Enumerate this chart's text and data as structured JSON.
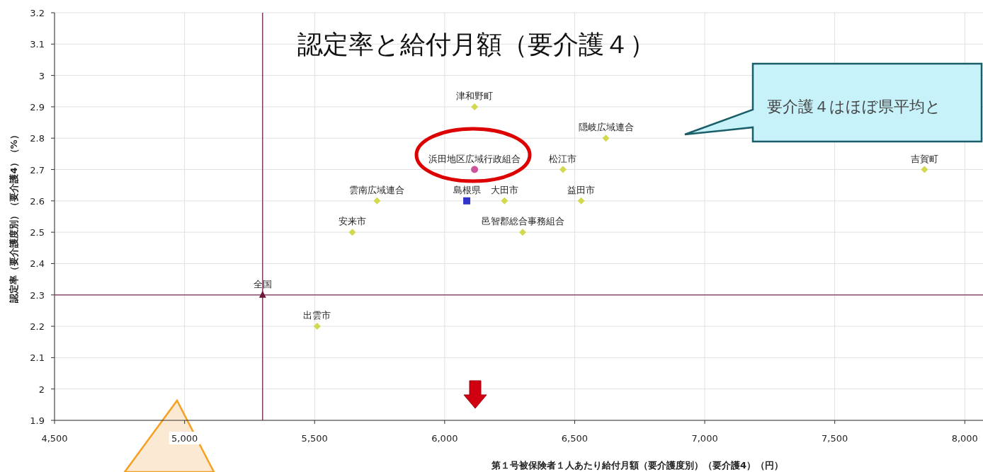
{
  "chart_data": {
    "type": "scatter",
    "title": "認定率と給付月額（要介護４）",
    "xlabel": "第１号被保険者１人あたり給付月額（要介護度別）（要介護4）（円）",
    "ylabel": "認定率（要介護度別）（要介護4）（%）",
    "xlim": [
      4500,
      8070
    ],
    "ylim": [
      1.9,
      3.2
    ],
    "xticks": [
      {
        "value": 4500,
        "label": "4,500"
      },
      {
        "value": 5000,
        "label": "5,000"
      },
      {
        "value": 5500,
        "label": "5,500"
      },
      {
        "value": 6000,
        "label": "6,000"
      },
      {
        "value": 6500,
        "label": "6,500"
      },
      {
        "value": 7000,
        "label": "7,000"
      },
      {
        "value": 7500,
        "label": "7,500"
      },
      {
        "value": 8000,
        "label": "8,000"
      }
    ],
    "yticks": [
      1.9,
      2,
      2.1,
      2.2,
      2.3,
      2.4,
      2.5,
      2.6,
      2.7,
      2.8,
      2.9,
      3,
      3.1,
      3.2
    ],
    "grid": true,
    "ref_lines": [
      {
        "axis": "x",
        "value": 5300,
        "color": "#6e1f4a"
      },
      {
        "axis": "y",
        "value": 2.3,
        "color": "#8c4a6e"
      }
    ],
    "series": [
      {
        "name": "全国",
        "color": "#6b1a3a",
        "marker": "triangle",
        "x": [
          5300
        ],
        "values": [
          2.3
        ]
      },
      {
        "name": "出雲市",
        "color": "#d2d94e",
        "marker": "diamond",
        "x": [
          5510
        ],
        "values": [
          2.2
        ]
      },
      {
        "name": "安来市",
        "color": "#d2d94e",
        "marker": "diamond",
        "x": [
          5645
        ],
        "values": [
          2.5
        ]
      },
      {
        "name": "雲南広域連合",
        "color": "#d2d94e",
        "marker": "diamond",
        "x": [
          5740
        ],
        "values": [
          2.6
        ]
      },
      {
        "name": "島根県",
        "color": "#3333cc",
        "marker": "square",
        "x": [
          6085
        ],
        "values": [
          2.6
        ]
      },
      {
        "name": "浜田地区広域行政組合",
        "color": "#cc5599",
        "marker": "circle",
        "x": [
          6115
        ],
        "values": [
          2.7
        ]
      },
      {
        "name": "津和野町",
        "color": "#d2d94e",
        "marker": "diamond",
        "x": [
          6115
        ],
        "values": [
          2.9
        ]
      },
      {
        "name": "大田市",
        "color": "#d2d94e",
        "marker": "diamond",
        "x": [
          6230
        ],
        "values": [
          2.6
        ]
      },
      {
        "name": "邑智郡総合事務組合",
        "color": "#d2d94e",
        "marker": "diamond",
        "x": [
          6300
        ],
        "values": [
          2.5
        ]
      },
      {
        "name": "松江市",
        "color": "#d2d94e",
        "marker": "diamond",
        "x": [
          6455
        ],
        "values": [
          2.7
        ]
      },
      {
        "name": "益田市",
        "color": "#d2d94e",
        "marker": "diamond",
        "x": [
          6525
        ],
        "values": [
          2.6
        ]
      },
      {
        "name": "隠岐広域連合",
        "color": "#d2d94e",
        "marker": "diamond",
        "x": [
          6620
        ],
        "values": [
          2.8
        ]
      },
      {
        "name": "吉賀町",
        "color": "#d2d94e",
        "marker": "diamond",
        "x": [
          7845
        ],
        "values": [
          2.7
        ]
      }
    ],
    "annotations": [
      "要介護４はほぼ県平均と"
    ]
  }
}
